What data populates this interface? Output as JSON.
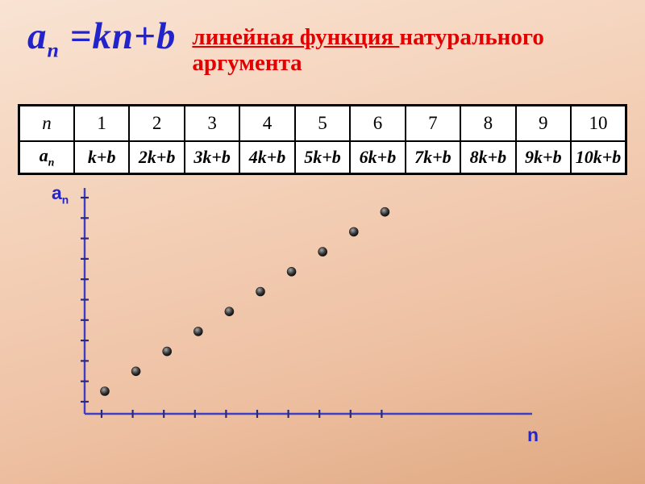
{
  "colors": {
    "formula_blue": "#2323cc",
    "subtitle_red": "#e30000",
    "axis": "#3d3dc6",
    "tick": "#2a2a7a",
    "dot": "#1c1c1c",
    "table_border": "#000000",
    "table_bg": "#ffffff",
    "background": "#f2c9ac"
  },
  "title": {
    "formula_base": "a",
    "formula_sub": "n",
    "formula_rhs": " =kn+b",
    "subtitle_underlined": "линейная функция ",
    "subtitle_rest": "натурального",
    "subtitle_line2": "аргумента"
  },
  "table": {
    "row1_label": "n",
    "row2_label_base": "a",
    "row2_label_sub": "n",
    "columns": [
      "1",
      "2",
      "3",
      "4",
      "5",
      "6",
      "7",
      "8",
      "9",
      "10"
    ],
    "values": [
      "k+b",
      "2k+b",
      "3k+b",
      "4k+b",
      "5k+b",
      "6k+b",
      "7k+b",
      "8k+b",
      "9k+b",
      "10k+b"
    ]
  },
  "chart_labels": {
    "y_base": "a",
    "y_sub": "n",
    "x": "n"
  },
  "chart_data": {
    "type": "scatter",
    "title": "",
    "xlabel": "n",
    "ylabel": "a_n",
    "x": [
      1,
      2,
      3,
      4,
      5,
      6,
      7,
      8,
      9,
      10
    ],
    "series": [
      {
        "name": "a_n = kn+b",
        "values": [
          1,
          2,
          3,
          4,
          5,
          6,
          7,
          8,
          9,
          10
        ],
        "values_symbolic": [
          "k+b",
          "2k+b",
          "3k+b",
          "4k+b",
          "5k+b",
          "6k+b",
          "7k+b",
          "8k+b",
          "9k+b",
          "10k+b"
        ]
      }
    ],
    "xlim": [
      0,
      14.5
    ],
    "ylim": [
      0,
      11.5
    ],
    "grid": false,
    "legend_position": "none",
    "marker": "filled-circle"
  }
}
